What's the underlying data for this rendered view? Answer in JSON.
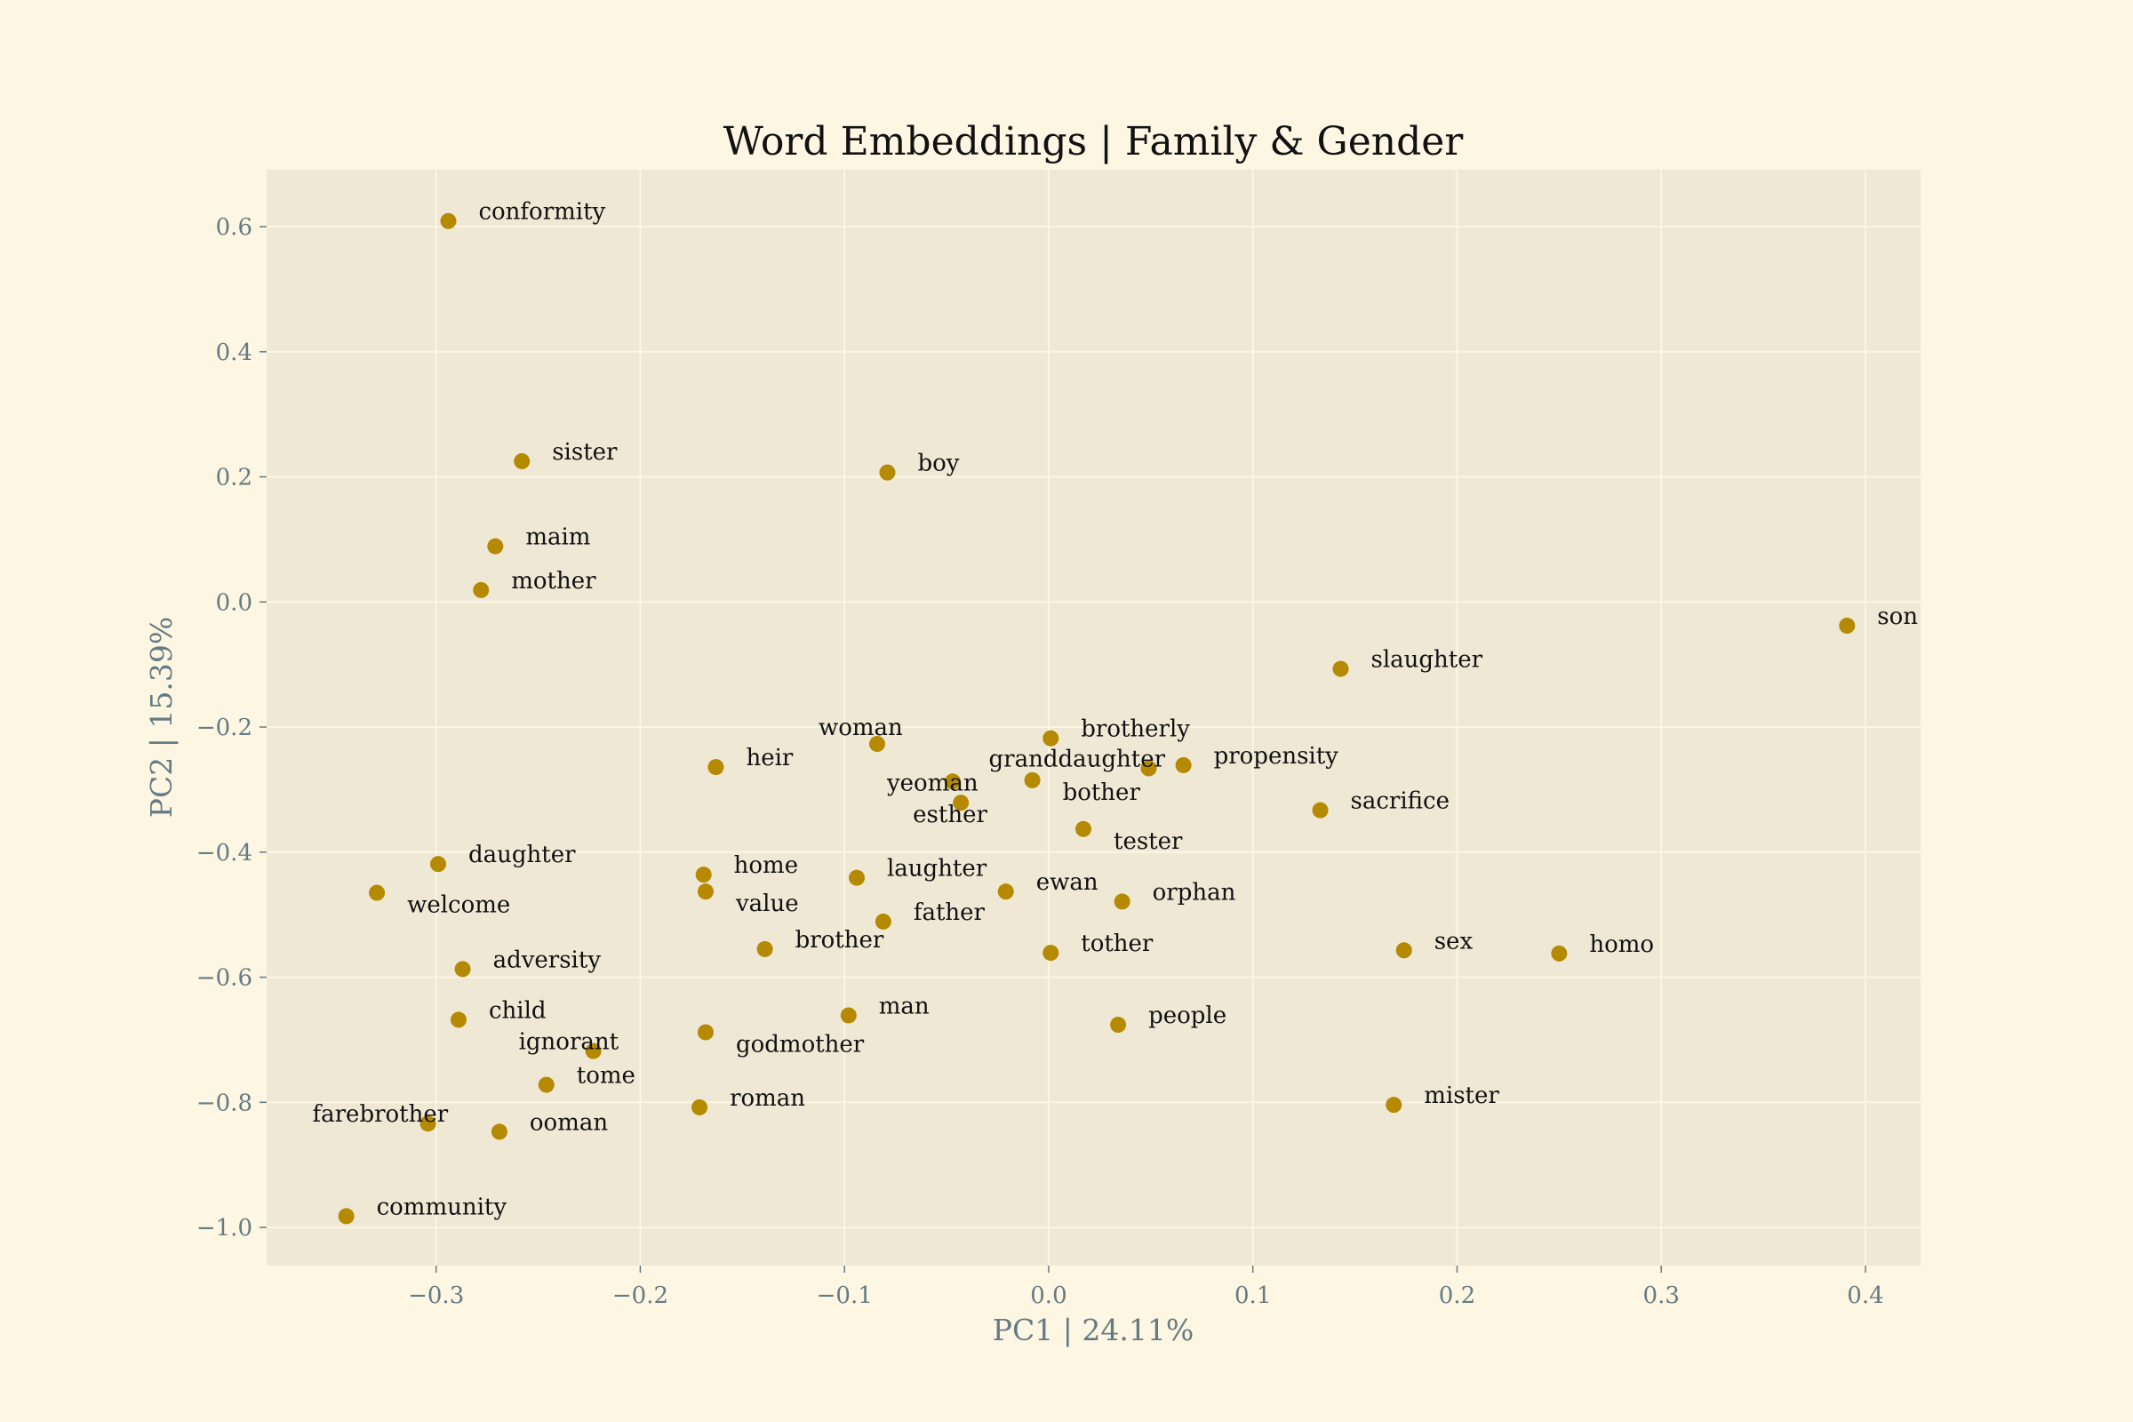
{
  "chart_data": {
    "type": "scatter",
    "title": "Word Embeddings | Family & Gender",
    "xlabel": "PC1 | 24.11%",
    "ylabel": "PC2 | 15.39%",
    "xlim": [
      -0.383,
      0.427
    ],
    "ylim": [
      -1.061,
      0.691
    ],
    "xticks": [
      -0.3,
      -0.2,
      -0.1,
      0.0,
      0.1,
      0.2,
      0.3,
      0.4
    ],
    "yticks": [
      0.6,
      0.4,
      0.2,
      0.0,
      -0.2,
      -0.4,
      -0.6,
      -0.8,
      -1.0
    ],
    "xtick_labels": [
      "−0.3",
      "−0.2",
      "−0.1",
      "0.0",
      "0.1",
      "0.2",
      "0.3",
      "0.4"
    ],
    "ytick_labels": [
      "0.6",
      "0.4",
      "0.2",
      "0.0",
      "−0.2",
      "−0.4",
      "−0.6",
      "−0.8",
      "−1.0"
    ],
    "grid": true,
    "colors": {
      "figure_background": "#fdf6e3",
      "plot_background": "#eee8d5",
      "grid": "#fdf6e3",
      "point": "#b58900",
      "axis_text": "#657b83",
      "title_text": "#111111",
      "label_text": "#111111"
    },
    "points": [
      {
        "label": "conformity",
        "x": -0.294,
        "y": 0.609
      },
      {
        "label": "sister",
        "x": -0.258,
        "y": 0.225
      },
      {
        "label": "boy",
        "x": -0.079,
        "y": 0.207
      },
      {
        "label": "maim",
        "x": -0.271,
        "y": 0.089
      },
      {
        "label": "mother",
        "x": -0.278,
        "y": 0.019
      },
      {
        "label": "son",
        "x": 0.391,
        "y": -0.038
      },
      {
        "label": "slaughter",
        "x": 0.143,
        "y": -0.107
      },
      {
        "label": "brotherly",
        "x": 0.001,
        "y": -0.218
      },
      {
        "label": "woman",
        "x": -0.084,
        "y": -0.227
      },
      {
        "label": "granddaughter",
        "x": 0.049,
        "y": -0.266
      },
      {
        "label": "propensity",
        "x": 0.066,
        "y": -0.261
      },
      {
        "label": "heir",
        "x": -0.163,
        "y": -0.264
      },
      {
        "label": "yeoman",
        "x": -0.047,
        "y": -0.287
      },
      {
        "label": "bother",
        "x": -0.008,
        "y": -0.285
      },
      {
        "label": "esther",
        "x": -0.043,
        "y": -0.321
      },
      {
        "label": "sacrifice",
        "x": 0.133,
        "y": -0.333
      },
      {
        "label": "tester",
        "x": 0.017,
        "y": -0.363
      },
      {
        "label": "daughter",
        "x": -0.299,
        "y": -0.419
      },
      {
        "label": "home",
        "x": -0.169,
        "y": -0.436
      },
      {
        "label": "laughter",
        "x": -0.094,
        "y": -0.441
      },
      {
        "label": "welcome",
        "x": -0.329,
        "y": -0.465
      },
      {
        "label": "value",
        "x": -0.168,
        "y": -0.463
      },
      {
        "label": "ewan",
        "x": -0.021,
        "y": -0.463
      },
      {
        "label": "orphan",
        "x": 0.036,
        "y": -0.479
      },
      {
        "label": "father",
        "x": -0.081,
        "y": -0.511
      },
      {
        "label": "brother",
        "x": -0.139,
        "y": -0.555
      },
      {
        "label": "tother",
        "x": 0.001,
        "y": -0.561
      },
      {
        "label": "sex",
        "x": 0.174,
        "y": -0.557
      },
      {
        "label": "homo",
        "x": 0.25,
        "y": -0.562
      },
      {
        "label": "adversity",
        "x": -0.287,
        "y": -0.587
      },
      {
        "label": "man",
        "x": -0.098,
        "y": -0.661
      },
      {
        "label": "child",
        "x": -0.289,
        "y": -0.668
      },
      {
        "label": "people",
        "x": 0.034,
        "y": -0.676
      },
      {
        "label": "godmother",
        "x": -0.168,
        "y": -0.688
      },
      {
        "label": "ignorant",
        "x": -0.223,
        "y": -0.718
      },
      {
        "label": "tome",
        "x": -0.246,
        "y": -0.772
      },
      {
        "label": "roman",
        "x": -0.171,
        "y": -0.808
      },
      {
        "label": "mister",
        "x": 0.169,
        "y": -0.804
      },
      {
        "label": "farebrother",
        "x": -0.304,
        "y": -0.834
      },
      {
        "label": "ooman",
        "x": -0.269,
        "y": -0.847
      },
      {
        "label": "community",
        "x": -0.344,
        "y": -0.982
      }
    ]
  }
}
